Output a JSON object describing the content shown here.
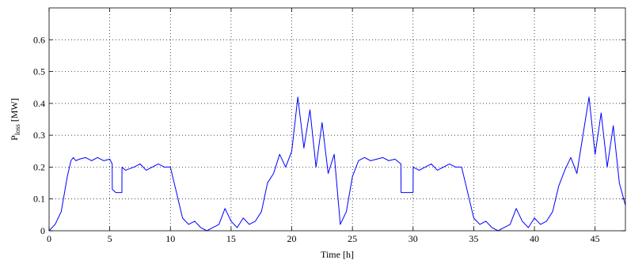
{
  "chart_data": {
    "type": "line",
    "title": "",
    "xlabel": "Time [h]",
    "ylabel_main": "P",
    "ylabel_sub": "loss",
    "ylabel_unit": " [MW]",
    "xlim": [
      0,
      47.5
    ],
    "ylim": [
      0,
      0.7
    ],
    "xticks": [
      0,
      5,
      10,
      15,
      20,
      25,
      30,
      35,
      40,
      45
    ],
    "xtick_labels": [
      "0",
      "5",
      "10",
      "15",
      "20",
      "25",
      "30",
      "35",
      "40",
      "45"
    ],
    "yticks": [
      0,
      0.1,
      0.2,
      0.3,
      0.4,
      0.5,
      0.6
    ],
    "ytick_labels": [
      "0",
      "0.1",
      "0.2",
      "0.3",
      "0.4",
      "0.5",
      "0.6"
    ],
    "grid": true,
    "line_color": "#0000ff",
    "series": [
      {
        "x": [
          0,
          0.5,
          1,
          1.5,
          1.8,
          2,
          2.2,
          2.5,
          3,
          3.5,
          4,
          4.5,
          5,
          5.2,
          5.21,
          5.5,
          6,
          6.01,
          6.3,
          7,
          7.5,
          8,
          8.5,
          9,
          9.5,
          10,
          10.5,
          11,
          11.5,
          12,
          12.5,
          13,
          13.5,
          14,
          14.5,
          15,
          15.5,
          16,
          16.5,
          17,
          17.5,
          18,
          18.5,
          19,
          19.5,
          20,
          20.5,
          21,
          21.5,
          22,
          22.5,
          23,
          23.5,
          24,
          24.5,
          25,
          25.5,
          26,
          26.5,
          27,
          27.5,
          28,
          28.5,
          29,
          29.01,
          29.5,
          30,
          30.01,
          30.5,
          31,
          31.5,
          32,
          32.5,
          33,
          33.5,
          34,
          34.5,
          35,
          35.5,
          36,
          36.5,
          37,
          37.5,
          38,
          38.5,
          39,
          39.5,
          40,
          40.5,
          41,
          41.5,
          42,
          42.5,
          43,
          43.5,
          44,
          44.5,
          45,
          45.5,
          46,
          46.5,
          47,
          47.5
        ],
        "y": [
          0,
          0.02,
          0.06,
          0.17,
          0.22,
          0.23,
          0.22,
          0.225,
          0.23,
          0.22,
          0.23,
          0.22,
          0.225,
          0.21,
          0.13,
          0.12,
          0.12,
          0.2,
          0.19,
          0.2,
          0.21,
          0.19,
          0.2,
          0.21,
          0.2,
          0.2,
          0.12,
          0.04,
          0.02,
          0.03,
          0.01,
          0,
          0.01,
          0.02,
          0.07,
          0.03,
          0.01,
          0.04,
          0.02,
          0.03,
          0.06,
          0.15,
          0.18,
          0.24,
          0.2,
          0.25,
          0.42,
          0.26,
          0.38,
          0.2,
          0.34,
          0.18,
          0.24,
          0.02,
          0.06,
          0.17,
          0.22,
          0.23,
          0.22,
          0.225,
          0.23,
          0.22,
          0.225,
          0.21,
          0.12,
          0.12,
          0.12,
          0.2,
          0.19,
          0.2,
          0.21,
          0.19,
          0.2,
          0.21,
          0.2,
          0.2,
          0.12,
          0.04,
          0.02,
          0.03,
          0.01,
          0,
          0.01,
          0.02,
          0.07,
          0.03,
          0.01,
          0.04,
          0.02,
          0.03,
          0.06,
          0.14,
          0.19,
          0.23,
          0.18,
          0.3,
          0.42,
          0.24,
          0.37,
          0.2,
          0.33,
          0.15,
          0.08
        ]
      }
    ]
  }
}
